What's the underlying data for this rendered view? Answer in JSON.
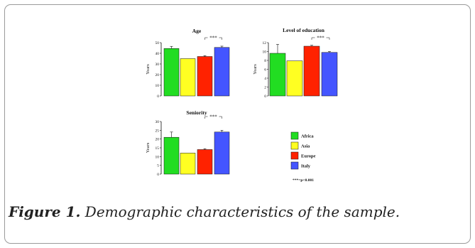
{
  "caption": {
    "label": "Figure 1.",
    "text": " Demographic characteristics of the sample."
  },
  "colors": {
    "Africa": "#22dd22",
    "Asia": "#ffff22",
    "Europe": "#ff2200",
    "Italy": "#4455ff"
  },
  "legend": [
    "Africa",
    "Asia",
    "Europe",
    "Italy"
  ],
  "note": "***=p<0.001",
  "chart_data": [
    {
      "type": "bar",
      "title": "Age",
      "ylabel": "Years",
      "categories": [
        "Africa",
        "Asia",
        "Europe",
        "Italy"
      ],
      "values": [
        44.5,
        35.0,
        37.0,
        45.5
      ],
      "errors": [
        2.0,
        0,
        0.8,
        1.2
      ],
      "ylim": [
        0,
        50
      ],
      "yticks": [
        0,
        10,
        20,
        30,
        40,
        50
      ],
      "significance": {
        "from": 2,
        "to": 3,
        "label": "***"
      }
    },
    {
      "type": "bar",
      "title": "Level of education",
      "ylabel": "Years",
      "categories": [
        "Africa",
        "Asia",
        "Europe",
        "Italy"
      ],
      "values": [
        9.6,
        7.9,
        11.2,
        9.8
      ],
      "errors": [
        2.0,
        0,
        0.2,
        0.2
      ],
      "ylim": [
        0,
        12
      ],
      "yticks": [
        0,
        2,
        4,
        6,
        8,
        10,
        12
      ],
      "significance": {
        "from": 2,
        "to": 3,
        "label": "***"
      }
    },
    {
      "type": "bar",
      "title": "Seniority",
      "ylabel": "Years",
      "categories": [
        "Africa",
        "Asia",
        "Europe",
        "Italy"
      ],
      "values": [
        21.0,
        12.0,
        14.0,
        24.0
      ],
      "errors": [
        3.0,
        0,
        0.5,
        1.0
      ],
      "ylim": [
        0,
        30
      ],
      "yticks": [
        0,
        5,
        10,
        15,
        20,
        25,
        30
      ],
      "significance": {
        "from": 2,
        "to": 3,
        "label": "***"
      }
    }
  ]
}
